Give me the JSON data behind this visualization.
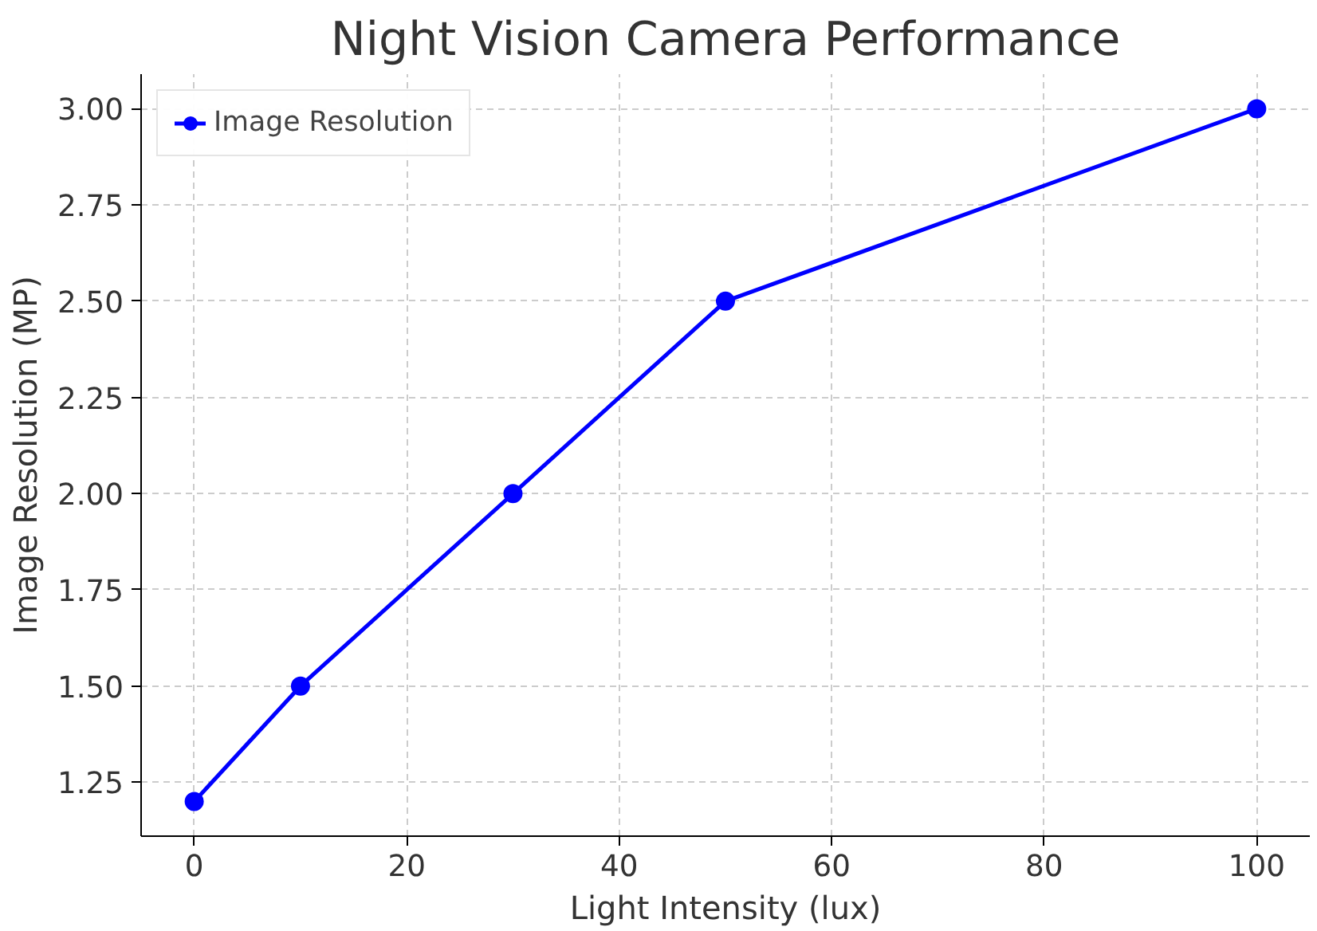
{
  "chart_data": {
    "type": "line",
    "title": "Night Vision Camera Performance",
    "xlabel": "Light Intensity (lux)",
    "ylabel": "Image Resolution (MP)",
    "x": [
      0,
      10,
      30,
      50,
      100
    ],
    "series": [
      {
        "name": "Image Resolution",
        "color": "#0000ff",
        "values": [
          1.2,
          1.5,
          2.0,
          2.5,
          3.0
        ]
      }
    ],
    "xlim": [
      -5,
      105
    ],
    "ylim": [
      1.11,
      3.09
    ],
    "xticks": [
      0,
      20,
      40,
      60,
      80,
      100
    ],
    "yticks": [
      {
        "value": 1.25,
        "label": "1.25"
      },
      {
        "value": 1.5,
        "label": "1.50"
      },
      {
        "value": 1.75,
        "label": "1.75"
      },
      {
        "value": 2.0,
        "label": "2.00"
      },
      {
        "value": 2.25,
        "label": "2.25"
      },
      {
        "value": 2.5,
        "label": "2.50"
      },
      {
        "value": 2.75,
        "label": "2.75"
      },
      {
        "value": 3.0,
        "label": "3.00"
      }
    ],
    "grid": true,
    "legend": "top left",
    "marker": "circle",
    "line_style": "solid"
  }
}
